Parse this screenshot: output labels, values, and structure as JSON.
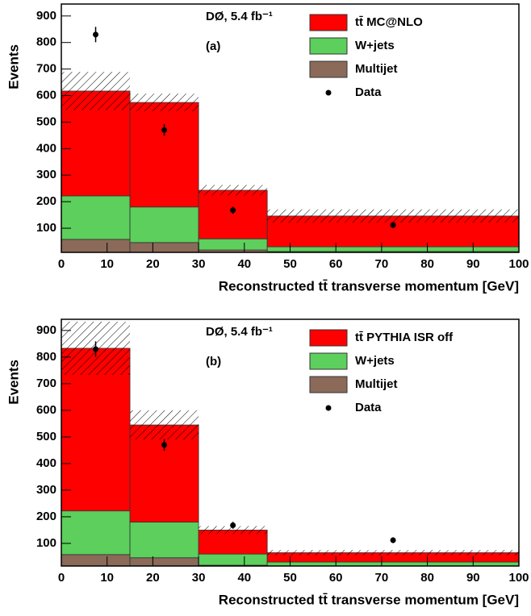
{
  "chart_data": [
    {
      "type": "stacked-histogram",
      "annotations": [
        "DØ, 5.4 fb⁻¹",
        "(a)"
      ],
      "x_label": "Reconstructed tt̄ transverse momentum [GeV]",
      "y_label": "Events",
      "bins": [
        0,
        15,
        30,
        45,
        100
      ],
      "series": [
        {
          "name": "Multijet",
          "color": "#8b6a5a",
          "values": [
            58,
            46,
            18,
            12
          ]
        },
        {
          "name": "W+jets",
          "color": "#5ccf5c",
          "values": [
            164,
            134,
            42,
            18
          ]
        },
        {
          "name": "tt̄ MC@NLO",
          "color": "#ff0000",
          "values": [
            395,
            394,
            183,
            116
          ]
        }
      ],
      "uncertainty": [
        72,
        33,
        20,
        25
      ],
      "data": {
        "name": "Data",
        "x": [
          7.5,
          22.5,
          37.5,
          72.5
        ],
        "values": [
          830,
          470,
          168,
          112
        ],
        "errors": [
          29,
          22,
          13,
          11
        ]
      },
      "xlim": [
        0,
        100
      ],
      "xticks": [
        0,
        10,
        20,
        30,
        40,
        50,
        60,
        70,
        80,
        90,
        100
      ],
      "ylim": [
        9,
        945
      ],
      "yticks": [
        100,
        200,
        300,
        400,
        500,
        600,
        700,
        800,
        900
      ]
    },
    {
      "type": "stacked-histogram",
      "annotations": [
        "DØ, 5.4 fb⁻¹",
        "(b)"
      ],
      "x_label": "Reconstructed tt̄ transverse momentum [GeV]",
      "y_label": "Events",
      "bins": [
        0,
        15,
        30,
        45,
        100
      ],
      "series": [
        {
          "name": "Multijet",
          "color": "#8b6a5a",
          "values": [
            58,
            46,
            18,
            12
          ]
        },
        {
          "name": "W+jets",
          "color": "#5ccf5c",
          "values": [
            164,
            134,
            42,
            18
          ]
        },
        {
          "name": "tt̄ PYTHIA ISR off",
          "color": "#ff0000",
          "values": [
            611,
            365,
            90,
            35
          ]
        }
      ],
      "uncertainty": [
        100,
        55,
        15,
        10
      ],
      "data": {
        "name": "Data",
        "x": [
          7.5,
          22.5,
          37.5,
          72.5
        ],
        "values": [
          830,
          470,
          168,
          112
        ],
        "errors": [
          29,
          22,
          13,
          11
        ]
      },
      "xlim": [
        0,
        100
      ],
      "xticks": [
        0,
        10,
        20,
        30,
        40,
        50,
        60,
        70,
        80,
        90,
        100
      ],
      "ylim": [
        15,
        942
      ],
      "yticks": [
        100,
        200,
        300,
        400,
        500,
        600,
        700,
        800,
        900
      ]
    }
  ]
}
